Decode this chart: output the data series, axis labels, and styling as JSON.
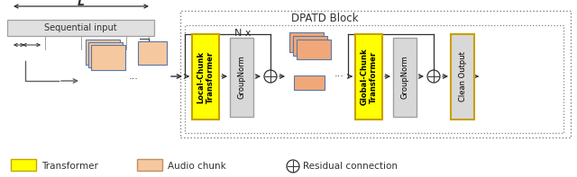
{
  "title": "DPATD Block",
  "nx_label": "N x",
  "seq_input_label": "Sequential input",
  "L_label": "L",
  "local_transformer_label": "Local-Chunk\nTransformer",
  "groupnorm1_label": "GroupNorm",
  "global_transformer_label": "Global-Chunk\nTransformer",
  "groupnorm2_label": "GroupNorm",
  "clean_output_label": "Clean Output",
  "legend_transformer": "Transformer",
  "legend_audio": "Audio chunk",
  "legend_residual": "Residual connection",
  "color_yellow": "#FFFF00",
  "color_yellow_border": "#C8A000",
  "color_orange_chunk": "#F0A878",
  "color_orange_light": "#F5C8A0",
  "color_gray_box": "#D8D8D8",
  "color_gray_border": "#A0A0A0",
  "color_gray_bg": "#E8E8E8",
  "color_dark": "#303030",
  "color_blue_edge": "#5878A8",
  "color_dashed": "#808080",
  "color_seq_bg": "#E0E0E0",
  "bg_color": "#FFFFFF"
}
